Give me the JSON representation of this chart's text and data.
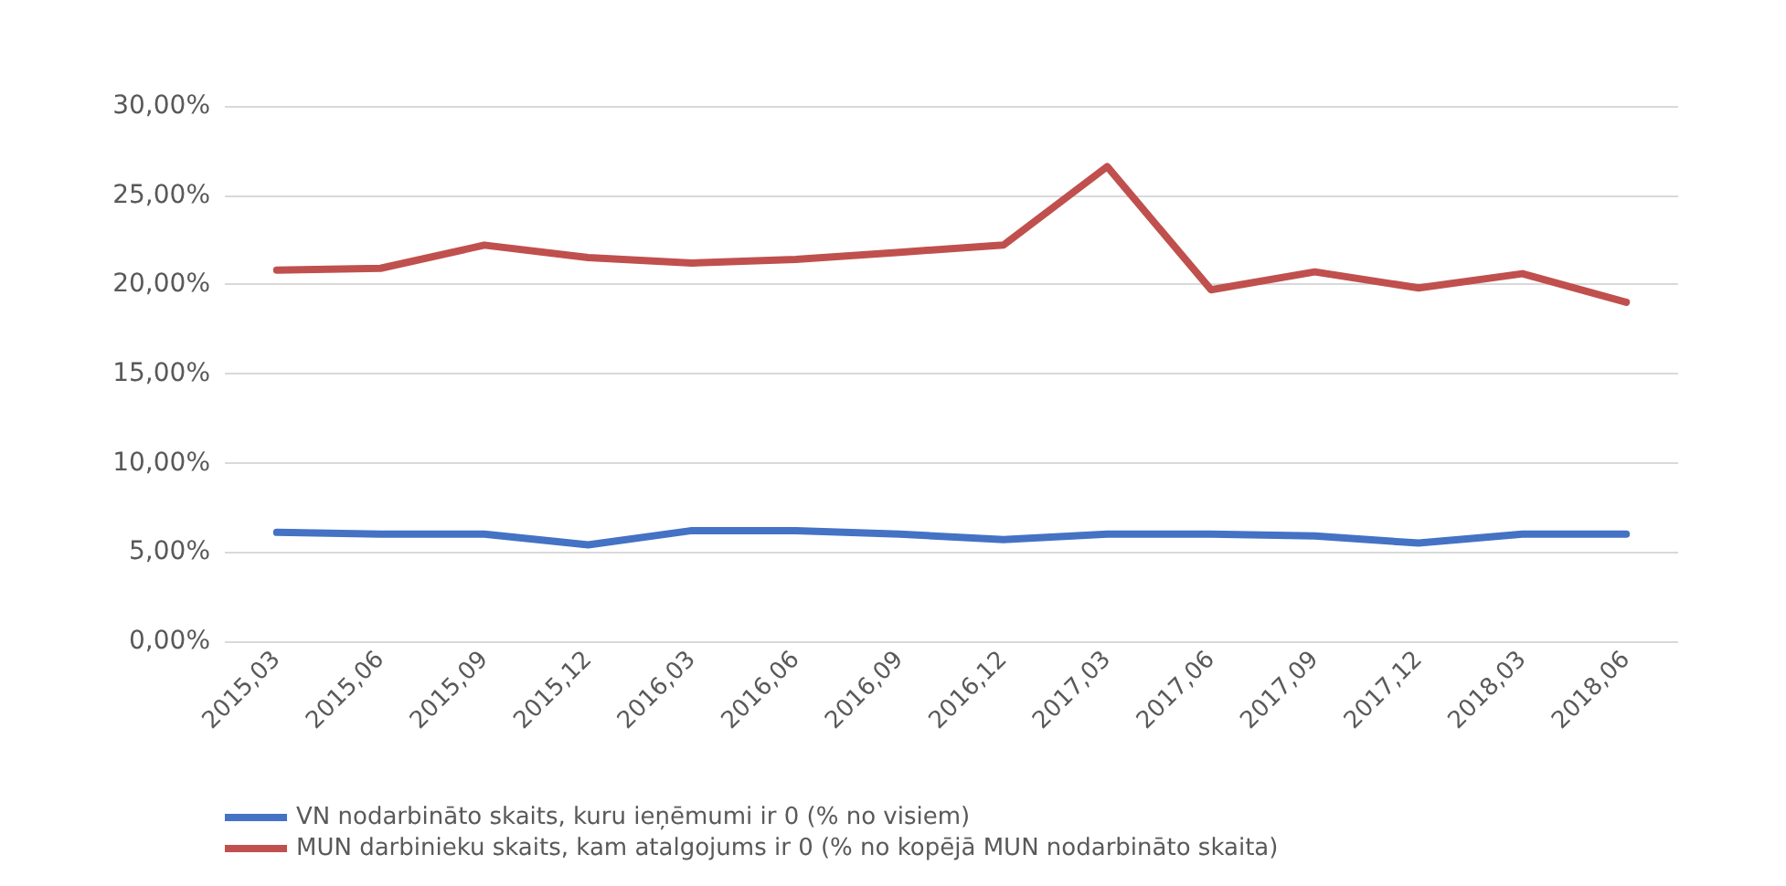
{
  "chart_data": {
    "type": "line",
    "categories": [
      "2015,03",
      "2015,06",
      "2015,09",
      "2015,12",
      "2016,03",
      "2016,06",
      "2016,09",
      "2016,12",
      "2017,03",
      "2017,06",
      "2017,09",
      "2017,12",
      "2018,03",
      "2018,06"
    ],
    "series": [
      {
        "name": "VN nodarbināto skaits, kuru ieņēmumi ir 0 (% no visiem)",
        "color": "#4472c4",
        "values": [
          6.1,
          6.0,
          6.0,
          5.4,
          6.2,
          6.2,
          6.0,
          5.7,
          6.0,
          6.0,
          5.9,
          5.5,
          6.0,
          6.0
        ]
      },
      {
        "name": "MUN darbinieku skaits, kam atalgojums ir 0 (% no kopējā MUN nodarbināto skaita)",
        "color": "#c0504d",
        "values": [
          20.8,
          20.9,
          22.2,
          21.5,
          21.2,
          21.4,
          21.8,
          22.2,
          26.6,
          19.7,
          20.7,
          19.8,
          20.6,
          19.0
        ]
      }
    ],
    "ylim": [
      0,
      30
    ],
    "yticks": [
      {
        "value": 0,
        "label": "0,00%"
      },
      {
        "value": 5,
        "label": "5,00%"
      },
      {
        "value": 10,
        "label": "10,00%"
      },
      {
        "value": 15,
        "label": "15,00%"
      },
      {
        "value": 20,
        "label": "20,00%"
      },
      {
        "value": 25,
        "label": "25,00%"
      },
      {
        "value": 30,
        "label": "30,00%"
      }
    ],
    "grid": "y",
    "legend": "bottom",
    "marker": "none",
    "line_style": "solid"
  }
}
